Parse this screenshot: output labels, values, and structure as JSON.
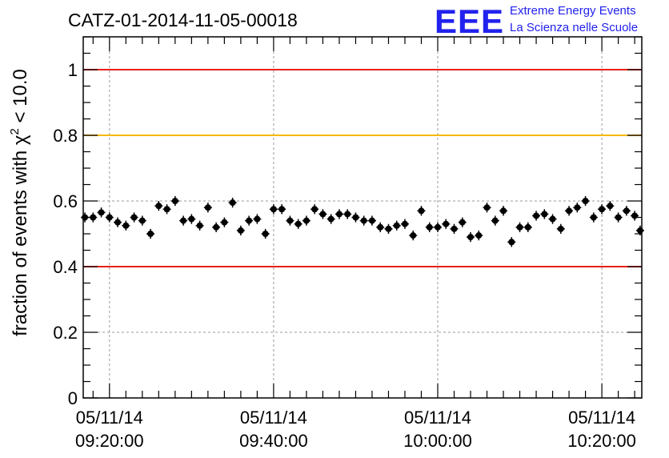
{
  "header": {
    "title": "CATZ-01-2014-11-05-00018",
    "logo_mark": "EEE",
    "logo_line1": "Extreme Energy Events",
    "logo_line2": "La Scienza nelle Scuole"
  },
  "colors": {
    "logo": "#2222ee",
    "ref_red": "#e8201a",
    "ref_yellow": "#f5b800",
    "points": "#000000",
    "grid": "#9a9a9a"
  },
  "chart_data": {
    "type": "scatter",
    "title": "CATZ-01-2014-11-05-00018",
    "xlabel": "",
    "ylabel": "fraction of events with χ² < 10.0",
    "ylabel_parts": {
      "pre": "fraction of events with ",
      "sym": "χ",
      "sup": "2",
      "post": " < 10.0"
    },
    "xlim": [
      "09:16:48",
      "10:24:52"
    ],
    "ylim": [
      0,
      1.1
    ],
    "yticks": [
      0,
      0.2,
      0.4,
      0.6,
      0.8,
      1
    ],
    "ytick_labels": [
      "0",
      "0.2",
      "0.4",
      "0.6",
      "0.8",
      "1"
    ],
    "xticks": [
      {
        "time": "09:20:00",
        "date": "05/11/14"
      },
      {
        "time": "09:40:00",
        "date": "05/11/14"
      },
      {
        "time": "10:00:00",
        "date": "05/11/14"
      },
      {
        "time": "10:20:00",
        "date": "05/11/14"
      }
    ],
    "grid": true,
    "reference_lines": [
      {
        "y": 1.0,
        "color": "red"
      },
      {
        "y": 0.8,
        "color": "yellow"
      },
      {
        "y": 0.4,
        "color": "red"
      }
    ],
    "series": [
      {
        "x": [
          "09:17:00",
          "09:18:00",
          "09:19:00",
          "09:20:00",
          "09:21:00",
          "09:22:00",
          "09:23:00",
          "09:24:00",
          "09:25:00",
          "09:26:00",
          "09:27:00",
          "09:28:00",
          "09:29:00",
          "09:30:00",
          "09:31:00",
          "09:32:00",
          "09:33:00",
          "09:34:00",
          "09:35:00",
          "09:36:00",
          "09:37:00",
          "09:38:00",
          "09:39:00",
          "09:40:00",
          "09:41:00",
          "09:42:00",
          "09:43:00",
          "09:44:00",
          "09:45:00",
          "09:46:00",
          "09:47:00",
          "09:48:00",
          "09:49:00",
          "09:50:00",
          "09:51:00",
          "09:52:00",
          "09:53:00",
          "09:54:00",
          "09:55:00",
          "09:56:00",
          "09:57:00",
          "09:58:00",
          "09:59:00",
          "10:00:00",
          "10:01:00",
          "10:02:00",
          "10:03:00",
          "10:04:00",
          "10:05:00",
          "10:06:00",
          "10:07:00",
          "10:08:00",
          "10:09:00",
          "10:10:00",
          "10:11:00",
          "10:12:00",
          "10:13:00",
          "10:14:00",
          "10:15:00",
          "10:16:00",
          "10:17:00",
          "10:18:00",
          "10:19:00",
          "10:20:00",
          "10:21:00",
          "10:22:00",
          "10:23:00",
          "10:24:00"
        ],
        "y": [
          0.55,
          0.55,
          0.565,
          0.55,
          0.535,
          0.525,
          0.55,
          0.54,
          0.5,
          0.585,
          0.575,
          0.6,
          0.54,
          0.545,
          0.525,
          0.58,
          0.52,
          0.535,
          0.595,
          0.51,
          0.54,
          0.545,
          0.5,
          0.575,
          0.575,
          0.54,
          0.53,
          0.54,
          0.575,
          0.56,
          0.545,
          0.56,
          0.56,
          0.55,
          0.54,
          0.54,
          0.52,
          0.515,
          0.525,
          0.53,
          0.495,
          0.57,
          0.52,
          0.52,
          0.53,
          0.515,
          0.535,
          0.49,
          0.495,
          0.58,
          0.54,
          0.57,
          0.475,
          0.52,
          0.52,
          0.555,
          0.56,
          0.545,
          0.515,
          0.57,
          0.58,
          0.6,
          0.55,
          0.575,
          0.585,
          0.55,
          0.57,
          0.555
        ],
        "y_error": 0.015
      }
    ],
    "last_point": {
      "x": "10:24:40",
      "y": 0.51
    }
  }
}
